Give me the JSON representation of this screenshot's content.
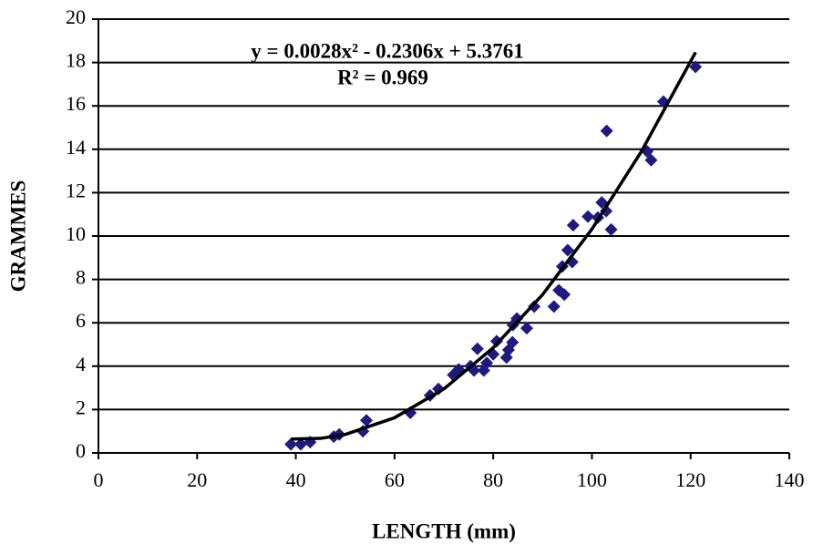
{
  "chart_data": {
    "type": "scatter",
    "x_label": "LENGTH (mm)",
    "y_label": "GRAMMES",
    "equation": "y = 0.0028x² - 0.2306x + 5.3761",
    "r_squared": "R² = 0.969",
    "color": "#1f1a80",
    "trend_color": "#000000",
    "xlim": [
      0,
      140
    ],
    "xticks": [
      0,
      20,
      40,
      60,
      80,
      100,
      120,
      140
    ],
    "ylim": [
      0,
      20
    ],
    "yticks": [
      0,
      2,
      4,
      6,
      8,
      10,
      12,
      14,
      16,
      18,
      20
    ],
    "grid": true,
    "x": [
      39,
      41,
      42.9,
      47.7,
      48.8,
      53.6,
      54.3,
      63.2,
      67.2,
      68.9,
      71.9,
      73,
      75.4,
      76.1,
      76.8,
      78.1,
      78.7,
      80,
      80.7,
      82.7,
      83.1,
      83.9,
      84,
      84.8,
      86.8,
      88.3,
      92.3,
      93.3,
      94.4,
      94,
      95.1,
      96,
      96.2,
      99.2,
      101.2,
      102,
      102.9,
      103,
      103.9,
      111.2,
      112,
      114.5,
      121
    ],
    "values": [
      0.4,
      0.4,
      0.5,
      0.75,
      0.85,
      1.0,
      1.5,
      1.85,
      2.65,
      2.95,
      3.6,
      3.85,
      4.0,
      3.8,
      4.8,
      3.8,
      4.15,
      4.55,
      5.15,
      4.4,
      4.75,
      5.1,
      5.9,
      6.2,
      5.75,
      6.75,
      6.75,
      7.5,
      7.3,
      8.6,
      9.35,
      8.8,
      10.5,
      10.9,
      10.85,
      11.55,
      11.15,
      14.85,
      10.3,
      13.9,
      13.5,
      16.2,
      17.8
    ],
    "trendline": {
      "x": [
        39,
        45,
        50,
        60,
        70,
        80,
        90,
        100,
        110,
        121
      ],
      "y": [
        0.64,
        0.67,
        0.85,
        1.62,
        2.95,
        4.85,
        7.3,
        10.32,
        13.89,
        18.47
      ]
    }
  }
}
